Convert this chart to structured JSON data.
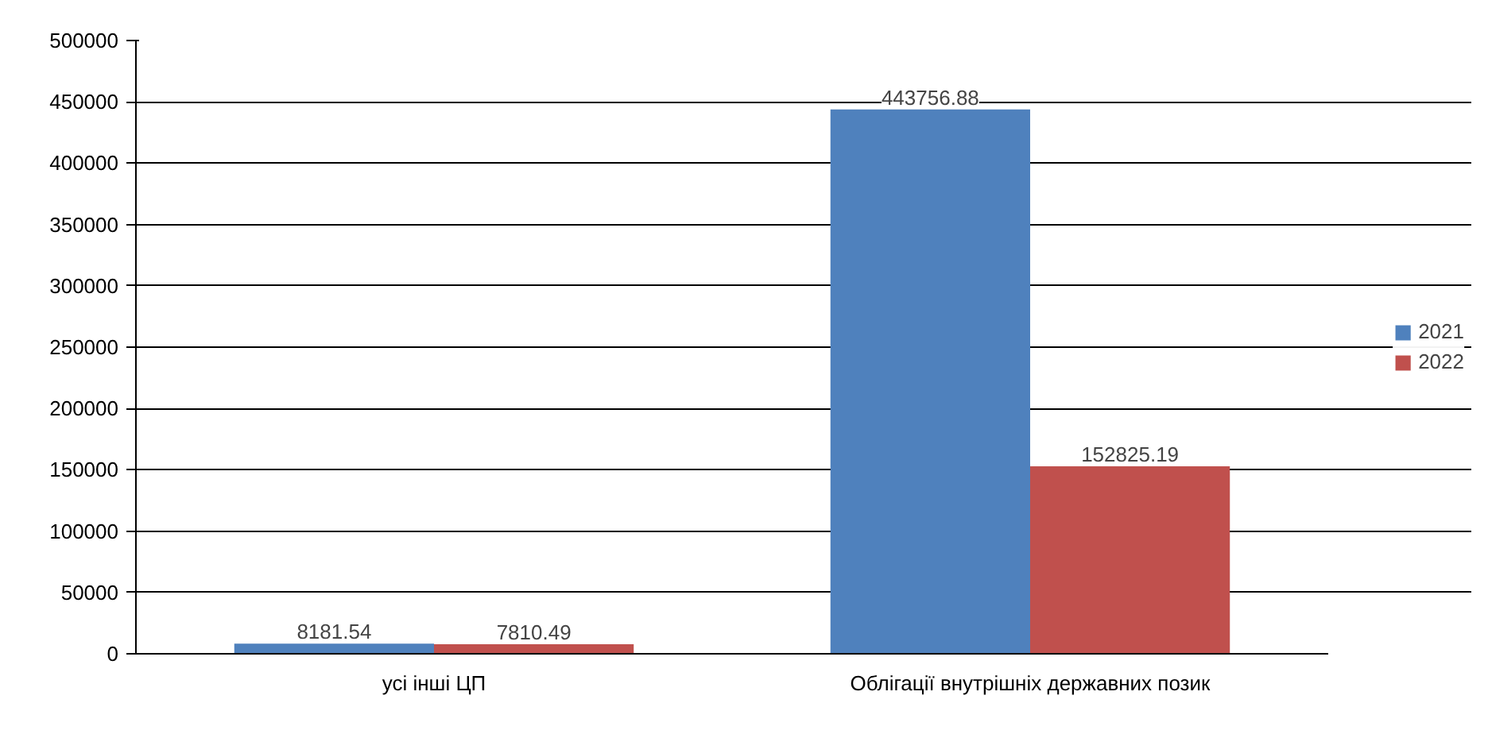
{
  "chart_data": {
    "type": "bar",
    "categories": [
      "усі інші ЦП",
      "Облігації внутрішніх державних позик"
    ],
    "series": [
      {
        "name": "2021",
        "color": "#4f81bd",
        "values": [
          8181.54,
          443756.88
        ]
      },
      {
        "name": "2022",
        "color": "#c0504d",
        "values": [
          7810.49,
          152825.19
        ]
      }
    ],
    "ylim": [
      0,
      500000
    ],
    "yticks": [
      0,
      50000,
      100000,
      150000,
      200000,
      250000,
      300000,
      350000,
      400000,
      450000,
      500000
    ],
    "grid": "y",
    "legend": "right",
    "data_labels": true
  }
}
